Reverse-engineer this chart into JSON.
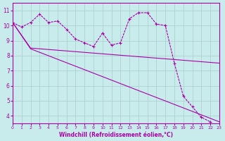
{
  "xlabel": "Windchill (Refroidissement éolien,°C)",
  "bg_color": "#c8ecec",
  "line_color": "#aa00aa",
  "grid_color": "#aacccc",
  "xlim": [
    0,
    23
  ],
  "ylim": [
    3.5,
    11.5
  ],
  "yticks": [
    4,
    5,
    6,
    7,
    8,
    9,
    10,
    11
  ],
  "xticks": [
    0,
    1,
    2,
    3,
    4,
    5,
    6,
    7,
    8,
    9,
    10,
    11,
    12,
    13,
    14,
    15,
    16,
    17,
    18,
    19,
    20,
    21,
    22,
    23
  ],
  "main_x": [
    0,
    1,
    2,
    3,
    4,
    5,
    6,
    7,
    8,
    9,
    10,
    11,
    12,
    13,
    14,
    15,
    16,
    17,
    18,
    19,
    20,
    21,
    22
  ],
  "main_y": [
    10.2,
    9.9,
    10.2,
    10.75,
    10.2,
    10.3,
    9.75,
    9.1,
    8.85,
    8.6,
    9.5,
    8.7,
    8.85,
    10.45,
    10.85,
    10.85,
    10.1,
    10.0,
    7.5,
    5.3,
    4.6,
    3.9,
    3.6
  ],
  "trend1_x": [
    0,
    2,
    23
  ],
  "trend1_y": [
    10.2,
    8.5,
    7.5
  ],
  "trend2_x": [
    0,
    2,
    23
  ],
  "trend2_y": [
    10.2,
    8.45,
    3.6
  ]
}
